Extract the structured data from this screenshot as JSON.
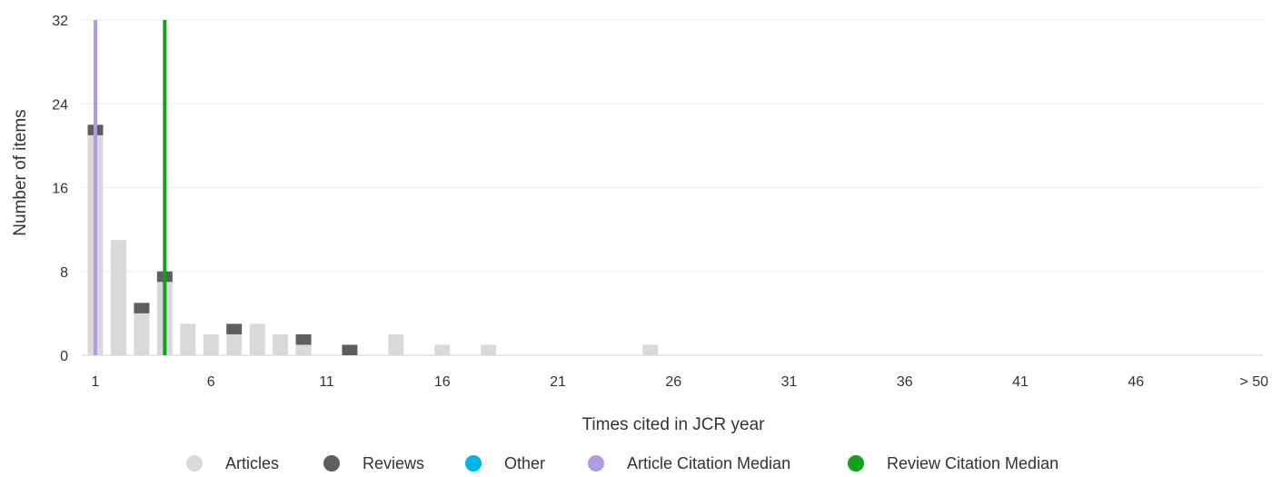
{
  "chart_data": {
    "type": "bar",
    "stacked": true,
    "xlabel": "Times cited in JCR year",
    "ylabel": "Number of items",
    "ylim": [
      0,
      32
    ],
    "yticks": [
      "0",
      "8",
      "16",
      "24",
      "32"
    ],
    "x_categories": [
      1,
      2,
      3,
      4,
      5,
      6,
      7,
      8,
      9,
      10,
      11,
      12,
      13,
      14,
      15,
      16,
      17,
      18,
      19,
      20,
      21,
      22,
      23,
      24,
      25,
      26,
      27,
      28,
      29,
      30,
      31,
      32,
      33,
      34,
      35,
      36,
      37,
      38,
      39,
      40,
      41,
      42,
      43,
      44,
      45,
      46,
      47,
      48,
      49,
      50,
      51
    ],
    "xticks": [
      {
        "x": 1,
        "label": "1"
      },
      {
        "x": 6,
        "label": "6"
      },
      {
        "x": 11,
        "label": "11"
      },
      {
        "x": 16,
        "label": "16"
      },
      {
        "x": 21,
        "label": "21"
      },
      {
        "x": 26,
        "label": "26"
      },
      {
        "x": 31,
        "label": "31"
      },
      {
        "x": 36,
        "label": "36"
      },
      {
        "x": 41,
        "label": "41"
      },
      {
        "x": 46,
        "label": "46"
      },
      {
        "x": 51,
        "label": "> 50"
      }
    ],
    "series": [
      {
        "name": "Articles",
        "color": "#d9d9d9",
        "points": [
          [
            1,
            21
          ],
          [
            2,
            11
          ],
          [
            3,
            4
          ],
          [
            4,
            7
          ],
          [
            5,
            3
          ],
          [
            6,
            2
          ],
          [
            7,
            2
          ],
          [
            8,
            3
          ],
          [
            9,
            2
          ],
          [
            10,
            1
          ],
          [
            14,
            2
          ],
          [
            16,
            1
          ],
          [
            18,
            1
          ],
          [
            25,
            1
          ]
        ]
      },
      {
        "name": "Reviews",
        "color": "#5e5e5e",
        "points": [
          [
            1,
            1
          ],
          [
            3,
            1
          ],
          [
            4,
            1
          ],
          [
            7,
            1
          ],
          [
            10,
            1
          ],
          [
            12,
            1
          ]
        ]
      },
      {
        "name": "Other",
        "color": "#00b5e8",
        "points": []
      }
    ],
    "medians": [
      {
        "name": "Article Citation Median",
        "x": 1,
        "color": "#b09ae0"
      },
      {
        "name": "Review Citation Median",
        "x": 4,
        "color": "#13a01a"
      }
    ],
    "legend": [
      {
        "label": "Articles",
        "color": "#d9d9d9"
      },
      {
        "label": "Reviews",
        "color": "#5e5e5e"
      },
      {
        "label": "Other",
        "color": "#00b5e8"
      },
      {
        "label": "Article Citation Median",
        "color": "#b09ae0"
      },
      {
        "label": "Review Citation Median",
        "color": "#13a01a"
      }
    ],
    "legend_position": "bottom-center",
    "grid": true
  }
}
